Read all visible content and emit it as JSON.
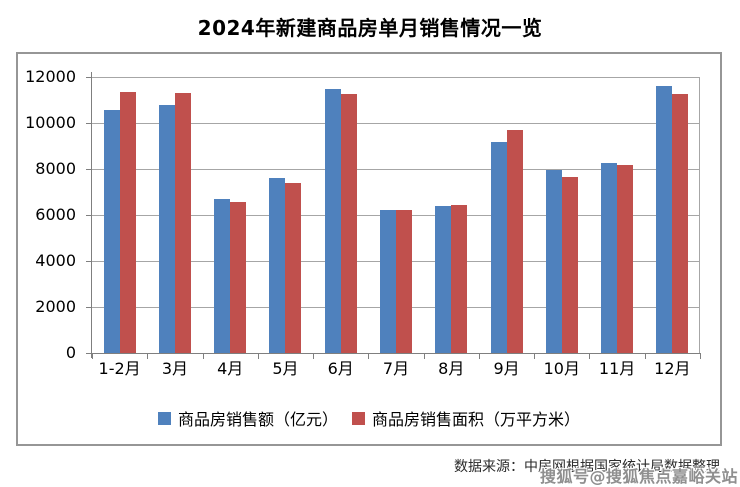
{
  "title": "2024年新建商品房单月销售情况一览",
  "chart_data": {
    "type": "bar",
    "categories": [
      "1-2月",
      "3月",
      "4月",
      "5月",
      "6月",
      "7月",
      "8月",
      "9月",
      "10月",
      "11月",
      "12月"
    ],
    "series": [
      {
        "name": "商品房销售额（亿元）",
        "color": "#4F81BD",
        "values": [
          10566,
          10789,
          6712,
          7598,
          11468,
          6197,
          6393,
          9157,
          7975,
          8270,
          11625
        ]
      },
      {
        "name": "商品房销售面积（万平方米）",
        "color": "#C0504D",
        "values": [
          11369,
          11299,
          6584,
          7390,
          11274,
          6233,
          6453,
          9682,
          7646,
          8188,
          11267
        ]
      }
    ],
    "ylim": [
      0,
      12000
    ],
    "ytick_step": 2000,
    "ytick_labels": [
      "0",
      "2000",
      "4000",
      "6000",
      "8000",
      "10000",
      "12000"
    ],
    "grid": true,
    "legend_position": "bottom"
  },
  "footer": {
    "source_text": "数据来源：中房网根据国家统计局数据整理"
  },
  "watermark": {
    "text": "搜狐号@搜狐焦点嘉峪关站"
  },
  "colors": {
    "series_amount": "#4F81BD",
    "series_area": "#C0504D",
    "gridline": "#a6a6a6",
    "axis": "#7f7f7f",
    "frame_border": "#969696",
    "watermark_text": "#8f8f8f"
  }
}
